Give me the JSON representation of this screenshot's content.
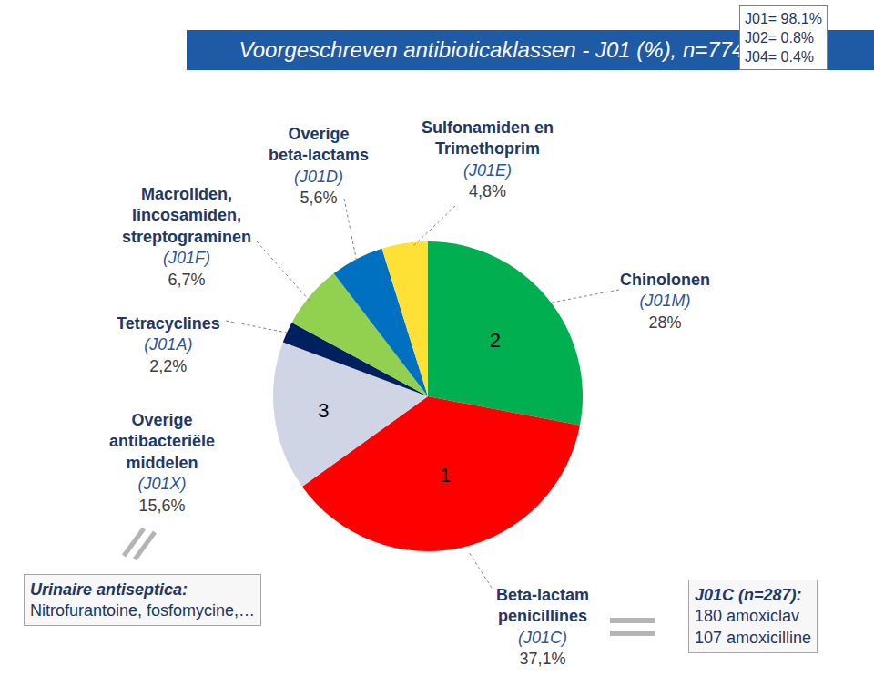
{
  "chart_data": {
    "type": "pie",
    "title": "Voorgeschreven antibioticaklassen - J01 (%), n=774",
    "categories": [
      "Chinolonen",
      "Beta-lactam penicillines",
      "Overige antibacteriële middelen",
      "Tetracyclines",
      "Macroliden, lincosamiden, streptograminen",
      "Overige beta-lactams",
      "Sulfonamiden en Trimethoprim"
    ],
    "codes": [
      "(J01M)",
      "(J01C)",
      "(J01X)",
      "(J01A)",
      "(J01F)",
      "(J01D)",
      "(J01E)"
    ],
    "values": [
      28,
      37.1,
      15.6,
      2.2,
      6.7,
      5.6,
      4.8
    ],
    "value_labels": [
      "28%",
      "37,1%",
      "15,6%",
      "2,2%",
      "6,7%",
      "5,6%",
      "4,8%"
    ],
    "colors": [
      "#00b050",
      "#ff0000",
      "#d0d5e5",
      "#002060",
      "#92d050",
      "#0070c0",
      "#ffe135"
    ],
    "slice_marks": [
      "2",
      "1",
      "3",
      null,
      null,
      null,
      null
    ],
    "summary": [
      "J01= 98.1%",
      "J02= 0.8%",
      "J04= 0.4%"
    ],
    "callouts": [
      {
        "title": "Urinaire antiseptica:",
        "lines": [
          "Nitrofurantoine, fosfomycine,…"
        ]
      },
      {
        "title": "J01C (n=287):",
        "lines": [
          "180 amoxiclav",
          "107 amoxicilline"
        ]
      }
    ]
  }
}
